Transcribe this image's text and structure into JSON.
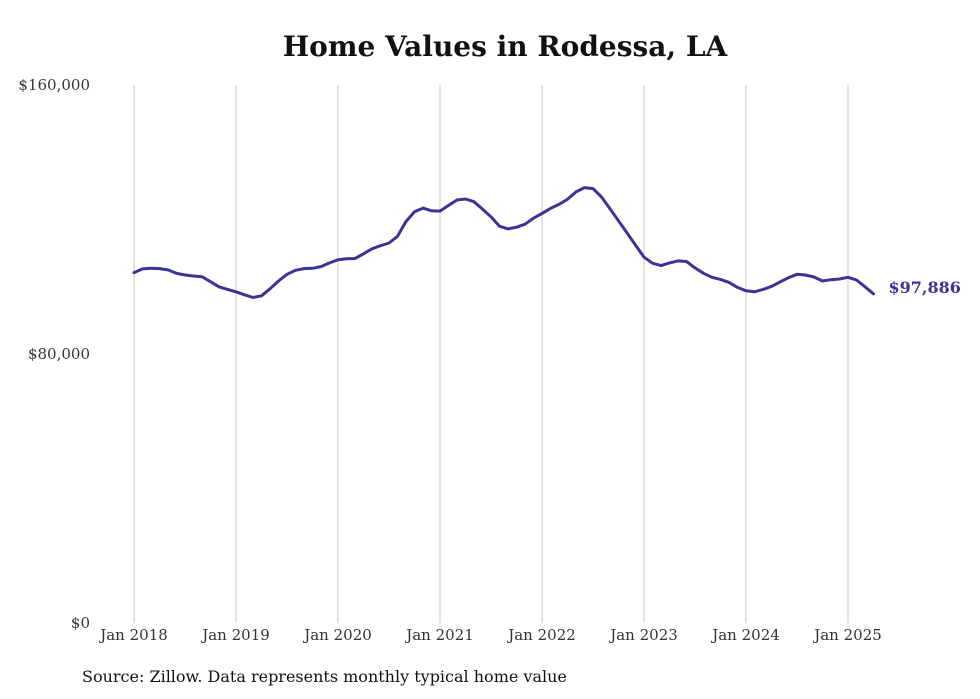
{
  "chart_data": {
    "type": "line",
    "title": "Home Values in Rodessa, LA",
    "source": "Source: Zillow. Data represents monthly typical home value",
    "series_color": "#3a3497",
    "grid_color": "#c8c8c8",
    "ylim": [
      0,
      160000
    ],
    "y_ticks": [
      {
        "value": 0,
        "label": "$0"
      },
      {
        "value": 80000,
        "label": "$80,000"
      },
      {
        "value": 160000,
        "label": "$160,000"
      }
    ],
    "x_ticks": [
      "Jan 2018",
      "Jan 2019",
      "Jan 2020",
      "Jan 2021",
      "Jan 2022",
      "Jan 2023",
      "Jan 2024",
      "Jan 2025"
    ],
    "end_label": "$97,886",
    "x": [
      "2018-01",
      "2018-02",
      "2018-03",
      "2018-04",
      "2018-05",
      "2018-06",
      "2018-07",
      "2018-08",
      "2018-09",
      "2018-10",
      "2018-11",
      "2018-12",
      "2019-01",
      "2019-02",
      "2019-03",
      "2019-04",
      "2019-05",
      "2019-06",
      "2019-07",
      "2019-08",
      "2019-09",
      "2019-10",
      "2019-11",
      "2019-12",
      "2020-01",
      "2020-02",
      "2020-03",
      "2020-04",
      "2020-05",
      "2020-06",
      "2020-07",
      "2020-08",
      "2020-09",
      "2020-10",
      "2020-11",
      "2020-12",
      "2021-01",
      "2021-02",
      "2021-03",
      "2021-04",
      "2021-05",
      "2021-06",
      "2021-07",
      "2021-08",
      "2021-09",
      "2021-10",
      "2021-11",
      "2021-12",
      "2022-01",
      "2022-02",
      "2022-03",
      "2022-04",
      "2022-05",
      "2022-06",
      "2022-07",
      "2022-08",
      "2022-09",
      "2022-10",
      "2022-11",
      "2022-12",
      "2023-01",
      "2023-02",
      "2023-03",
      "2023-04",
      "2023-05",
      "2023-06",
      "2023-07",
      "2023-08",
      "2023-09",
      "2023-10",
      "2023-11",
      "2023-12",
      "2024-01",
      "2024-02",
      "2024-03",
      "2024-04",
      "2024-05",
      "2024-06",
      "2024-07",
      "2024-08",
      "2024-09",
      "2024-10",
      "2024-11",
      "2024-12",
      "2025-01",
      "2025-02",
      "2025-03",
      "2025-04"
    ],
    "values": [
      104200,
      105300,
      105500,
      105400,
      105000,
      104000,
      103500,
      103200,
      103000,
      101500,
      100000,
      99200,
      98500,
      97600,
      96800,
      97300,
      99400,
      101700,
      103700,
      104900,
      105400,
      105500,
      106000,
      107100,
      108000,
      108300,
      108400,
      109800,
      111300,
      112200,
      113000,
      115000,
      119400,
      122300,
      123400,
      122600,
      122500,
      124200,
      125800,
      126100,
      125300,
      123100,
      120800,
      118000,
      117200,
      117700,
      118600,
      120400,
      121800,
      123300,
      124500,
      126000,
      128200,
      129500,
      129200,
      126700,
      123200,
      119600,
      116000,
      112400,
      108800,
      107000,
      106300,
      107100,
      107700,
      107500,
      105600,
      104000,
      102800,
      102200,
      101300,
      99800,
      98800,
      98500,
      99200,
      100100,
      101400,
      102700,
      103700,
      103500,
      102900,
      101700,
      102100,
      102300,
      102800,
      102000,
      100000,
      97886
    ]
  }
}
